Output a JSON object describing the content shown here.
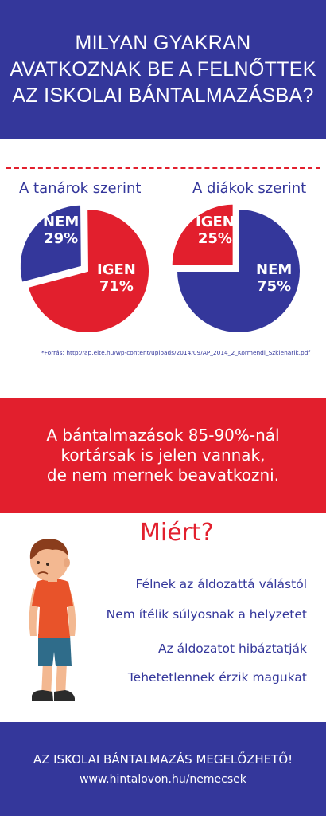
{
  "header": {
    "lines": [
      "MILYAN GYAKRAN",
      "AVATKOZNAK BE A FELNŐTTEK",
      "AZ ISKOLAI BÁNTALMAZÁSBA?"
    ]
  },
  "colors": {
    "blue": "#34379b",
    "red": "#e21f2d",
    "white": "#ffffff"
  },
  "chart_data": [
    {
      "type": "pie",
      "title": "A tanárok szerint",
      "slices": [
        {
          "label": "IGEN",
          "value": 71,
          "display": "71%",
          "color": "#e21f2d"
        },
        {
          "label": "NEM",
          "value": 29,
          "display": "29%",
          "color": "#34379b",
          "exploded": true
        }
      ]
    },
    {
      "type": "pie",
      "title": "A diákok szerint",
      "slices": [
        {
          "label": "NEM",
          "value": 75,
          "display": "75%",
          "color": "#34379b"
        },
        {
          "label": "IGEN",
          "value": 25,
          "display": "25%",
          "color": "#e21f2d",
          "exploded": true
        }
      ]
    }
  ],
  "source": "*Forrás: http://ap.elte.hu/wp-content/uploads/2014/09/AP_2014_2_Kormendi_Szklenarik.pdf",
  "highlight": {
    "lines": [
      "A  bántalmazások 85-90%-nál",
      "kortársak is jelen vannak,",
      "de nem mernek beavatkozni."
    ]
  },
  "why": {
    "title": "Miért?",
    "reasons": [
      "Félnek  az áldozattá válástól",
      "Nem ítélik súlyosnak a helyzetet",
      "Az áldozatot  hibáztatják",
      "Tehetetlennek  érzik magukat"
    ]
  },
  "footer": {
    "slogan": "AZ ISKOLAI BÁNTALMAZÁS MEGELŐZHETŐ!",
    "url": "www.hintalovon.hu/nemecsek"
  }
}
